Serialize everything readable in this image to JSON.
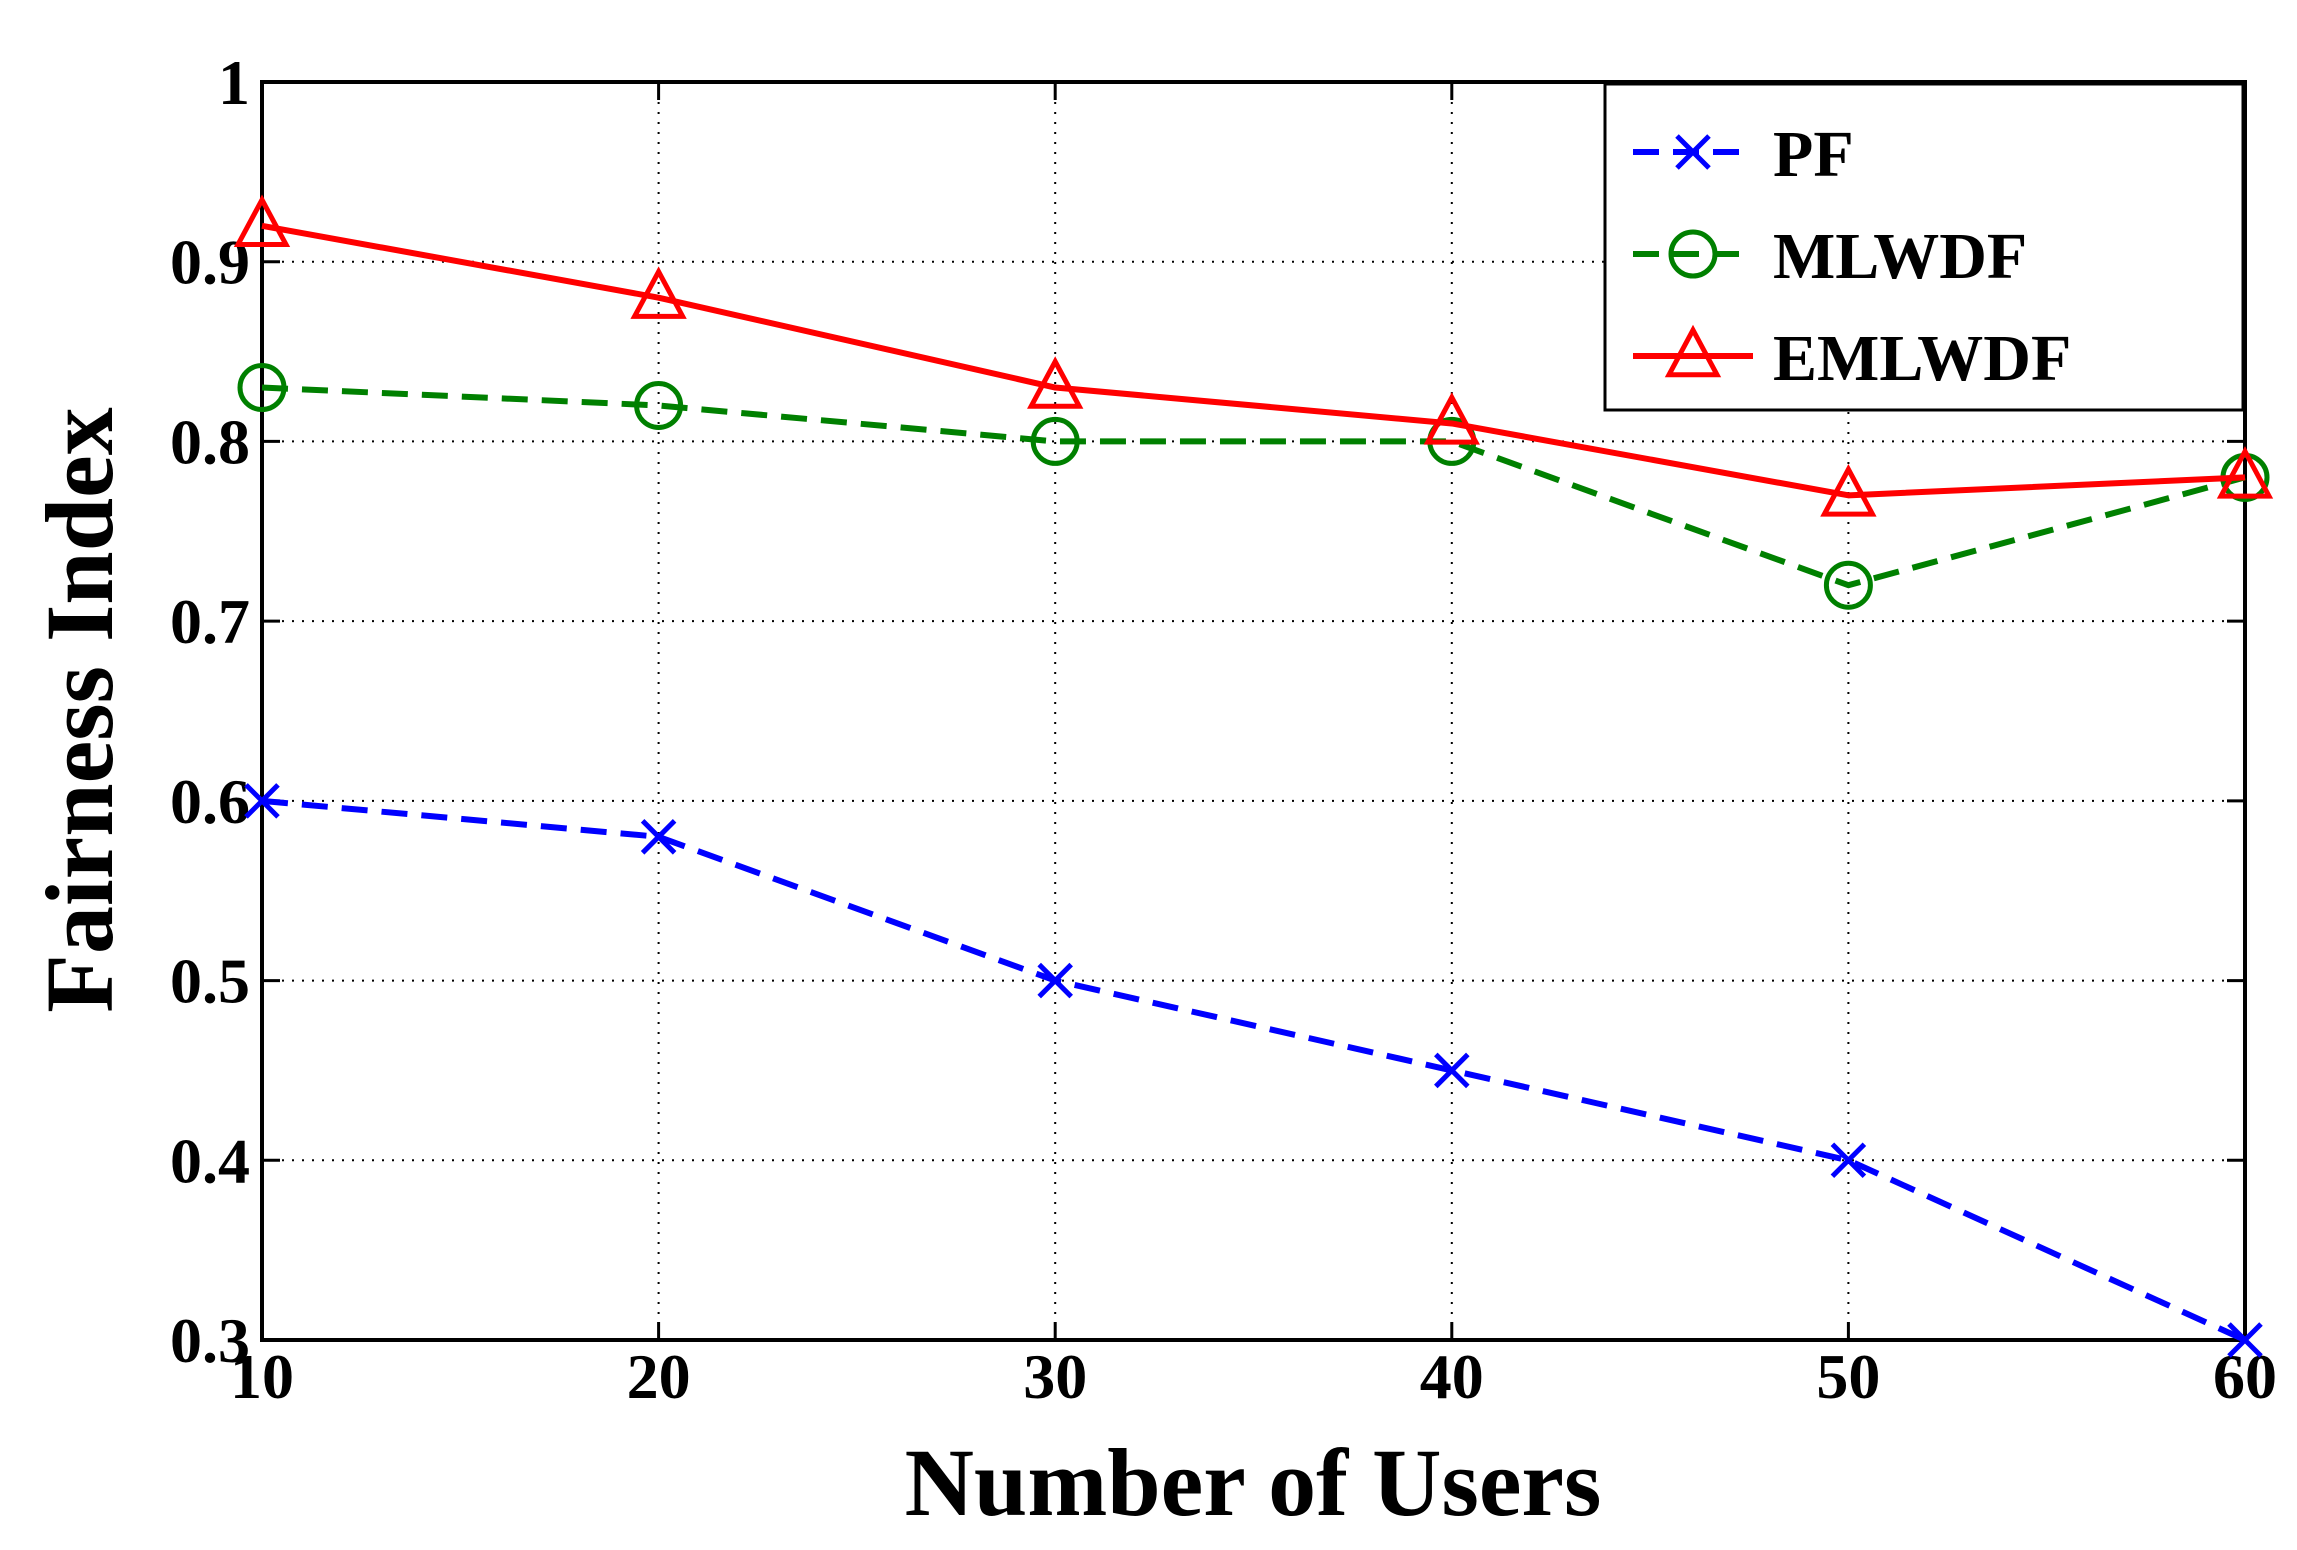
{
  "chart_data": {
    "type": "line",
    "title": "",
    "xlabel": "Number of Users",
    "ylabel": "Fairness Index",
    "x": [
      10,
      20,
      30,
      40,
      50,
      60
    ],
    "xlim": [
      10,
      60
    ],
    "ylim": [
      0.3,
      1
    ],
    "xticks": [
      10,
      20,
      30,
      40,
      50,
      60
    ],
    "xtick_labels": [
      "10",
      "20",
      "30",
      "40",
      "50",
      "60"
    ],
    "yticks": [
      0.3,
      0.4,
      0.5,
      0.6,
      0.7,
      0.8,
      0.9,
      1
    ],
    "ytick_labels": [
      "0.3",
      "0.4",
      "0.5",
      "0.6",
      "0.7",
      "0.8",
      "0.9",
      "1"
    ],
    "grid": true,
    "legend_position": "top-right",
    "series": [
      {
        "name": "PF",
        "values": [
          0.6,
          0.58,
          0.5,
          0.45,
          0.4,
          0.3
        ],
        "color": "#0000ff",
        "line_style": "dashed",
        "marker": "x"
      },
      {
        "name": "MLWDF",
        "values": [
          0.83,
          0.82,
          0.8,
          0.8,
          0.72,
          0.78
        ],
        "color": "#008000",
        "line_style": "dashed",
        "marker": "circle"
      },
      {
        "name": "EMLWDF",
        "values": [
          0.92,
          0.88,
          0.83,
          0.81,
          0.77,
          0.78
        ],
        "color": "#ff0000",
        "line_style": "solid",
        "marker": "triangle"
      }
    ]
  }
}
